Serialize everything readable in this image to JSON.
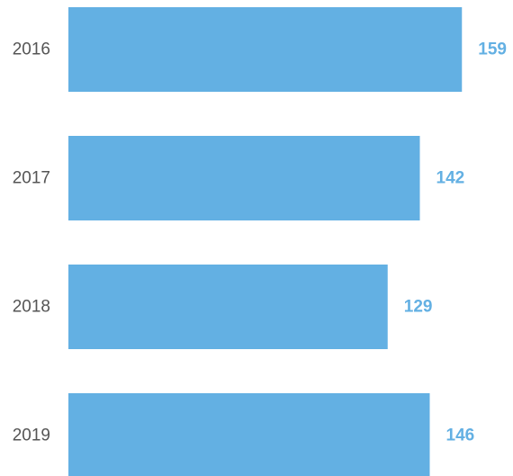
{
  "chart_data": {
    "type": "bar",
    "orientation": "horizontal",
    "categories": [
      "2016",
      "2017",
      "2018",
      "2019"
    ],
    "values": [
      159,
      142,
      129,
      146
    ],
    "value_labels": [
      "159",
      "142",
      "129",
      "146"
    ],
    "xlim": [
      0,
      185
    ],
    "grid": false,
    "legend": "none"
  },
  "colors": {
    "bar": "#63b0e3",
    "value_label": "#63b0e3",
    "category_label": "#555555",
    "background": "#ffffff"
  }
}
